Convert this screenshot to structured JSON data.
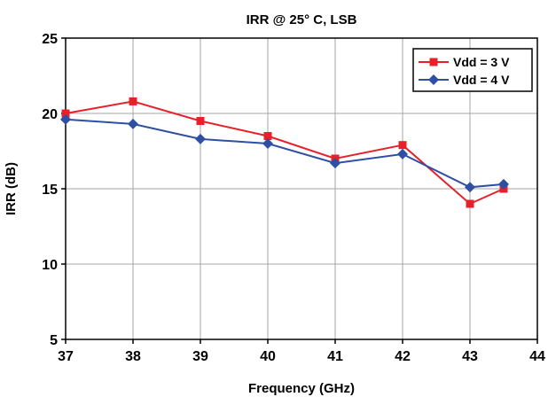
{
  "chart_data": {
    "type": "line",
    "title": "IRR @ 25° C,  LSB",
    "xlabel": "Frequency (GHz)",
    "ylabel": "IRR (dB)",
    "xlim": [
      37,
      44
    ],
    "ylim": [
      5,
      25
    ],
    "xticks": [
      37,
      38,
      39,
      40,
      41,
      42,
      43,
      44
    ],
    "yticks": [
      5,
      10,
      15,
      20,
      25
    ],
    "grid": true,
    "legend_position": "top-right",
    "series": [
      {
        "name": "Vdd = 3 V",
        "color": "#e8202a",
        "marker": "square",
        "x": [
          37,
          38,
          39,
          40,
          41,
          42,
          43,
          43.5
        ],
        "y": [
          20.0,
          20.8,
          19.5,
          18.5,
          17.0,
          17.9,
          14.0,
          15.0
        ]
      },
      {
        "name": "Vdd = 4 V",
        "color": "#2e4fa3",
        "marker": "diamond",
        "x": [
          37,
          38,
          39,
          40,
          41,
          42,
          43,
          43.5
        ],
        "y": [
          19.6,
          19.3,
          18.3,
          18.0,
          16.7,
          17.3,
          15.1,
          15.3
        ]
      }
    ]
  }
}
